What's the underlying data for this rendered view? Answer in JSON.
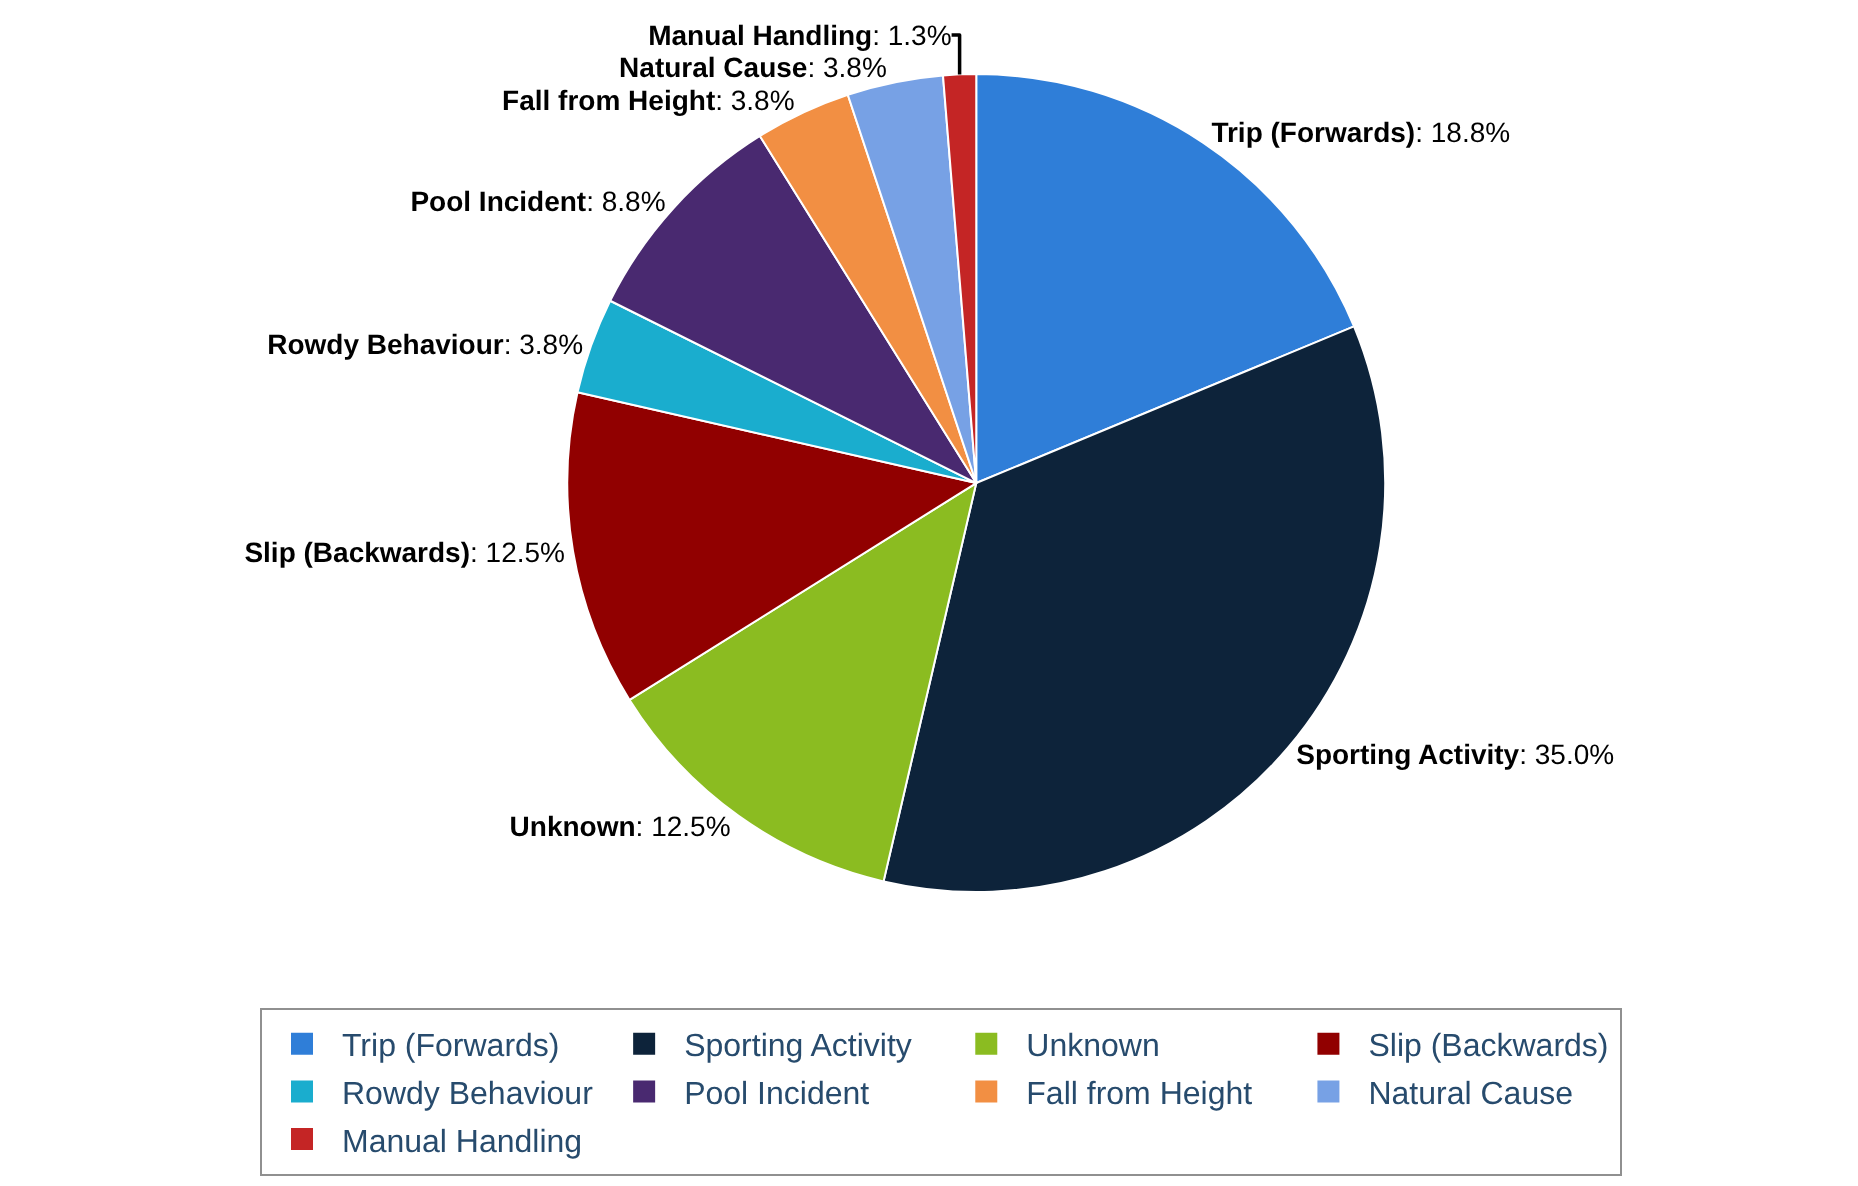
{
  "chart_data": {
    "type": "pie",
    "categories": [
      "Trip (Forwards)",
      "Sporting Activity",
      "Unknown",
      "Slip (Backwards)",
      "Rowdy Behaviour",
      "Pool Incident",
      "Fall from Height",
      "Natural Cause",
      "Manual Handling"
    ],
    "values": [
      18.8,
      35.0,
      12.5,
      12.5,
      3.8,
      8.8,
      3.8,
      3.8,
      1.3
    ],
    "value_labels": [
      ": 18.8%",
      ": 35.0%",
      ": 12.5%",
      ": 12.5%",
      ": 3.8%",
      ": 8.8%",
      ": 3.8%",
      ": 3.8%",
      ": 1.3%"
    ],
    "colors": [
      "#2f7ed8",
      "#0d233a",
      "#8bbc21",
      "#910000",
      "#1aadce",
      "#492970",
      "#f28f43",
      "#77a1e5",
      "#c42525"
    ],
    "legend": "bottom"
  }
}
